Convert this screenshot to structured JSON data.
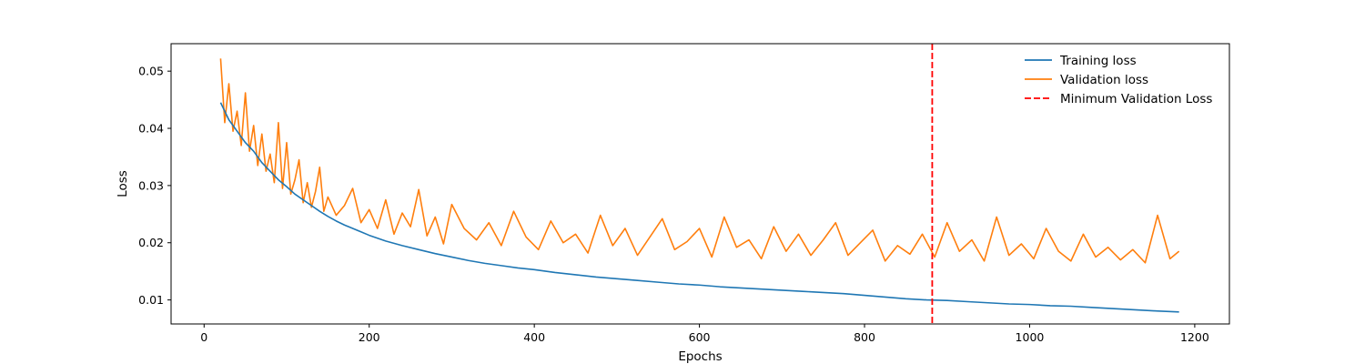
{
  "chart_data": {
    "type": "line",
    "title": "",
    "xlabel": "Epochs",
    "ylabel": "Loss",
    "xlim": [
      -40,
      1242
    ],
    "ylim": [
      0.0058,
      0.0548
    ],
    "xticks": [
      0,
      200,
      400,
      600,
      800,
      1000,
      1200
    ],
    "yticks": [
      0.01,
      0.02,
      0.03,
      0.04,
      0.05
    ],
    "grid": false,
    "legend_position": "top-right",
    "series": [
      {
        "name": "Training loss",
        "color": "#1f77b4",
        "style": "solid",
        "x": [
          20,
          30,
          40,
          50,
          60,
          70,
          80,
          90,
          100,
          110,
          120,
          130,
          140,
          150,
          160,
          170,
          180,
          190,
          200,
          220,
          240,
          260,
          280,
          300,
          320,
          340,
          360,
          380,
          400,
          425,
          450,
          475,
          500,
          525,
          550,
          575,
          600,
          625,
          650,
          675,
          700,
          725,
          750,
          775,
          800,
          825,
          850,
          875,
          900,
          925,
          950,
          975,
          1000,
          1025,
          1050,
          1075,
          1100,
          1125,
          1150,
          1181
        ],
        "y": [
          0.0445,
          0.0415,
          0.0395,
          0.0375,
          0.036,
          0.034,
          0.0325,
          0.031,
          0.0298,
          0.0285,
          0.0275,
          0.0265,
          0.0255,
          0.0246,
          0.0238,
          0.0231,
          0.0225,
          0.0219,
          0.0213,
          0.0203,
          0.0195,
          0.0188,
          0.0181,
          0.0175,
          0.0169,
          0.0164,
          0.016,
          0.0156,
          0.0153,
          0.0148,
          0.0144,
          0.014,
          0.0137,
          0.0134,
          0.0131,
          0.0128,
          0.0126,
          0.0123,
          0.0121,
          0.0119,
          0.0117,
          0.0115,
          0.0113,
          0.0111,
          0.0108,
          0.0105,
          0.0102,
          0.01,
          0.0099,
          0.0097,
          0.0095,
          0.0093,
          0.0092,
          0.009,
          0.0089,
          0.0087,
          0.0085,
          0.0083,
          0.0081,
          0.0079
        ]
      },
      {
        "name": "Validation loss",
        "color": "#ff7f0e",
        "style": "solid",
        "x": [
          20,
          25,
          30,
          35,
          40,
          45,
          50,
          55,
          60,
          65,
          70,
          75,
          80,
          85,
          90,
          95,
          100,
          105,
          110,
          115,
          120,
          125,
          130,
          135,
          140,
          145,
          150,
          160,
          170,
          180,
          190,
          200,
          210,
          220,
          230,
          240,
          250,
          260,
          270,
          280,
          290,
          300,
          315,
          330,
          345,
          360,
          375,
          390,
          405,
          420,
          435,
          450,
          465,
          480,
          495,
          510,
          525,
          540,
          555,
          570,
          585,
          600,
          615,
          630,
          645,
          660,
          675,
          690,
          705,
          720,
          735,
          750,
          765,
          780,
          795,
          810,
          825,
          840,
          855,
          870,
          885,
          900,
          915,
          930,
          945,
          960,
          975,
          990,
          1005,
          1020,
          1035,
          1050,
          1065,
          1080,
          1095,
          1110,
          1125,
          1140,
          1155,
          1170,
          1181
        ],
        "y": [
          0.0522,
          0.041,
          0.0478,
          0.0395,
          0.043,
          0.037,
          0.0462,
          0.036,
          0.0405,
          0.0335,
          0.039,
          0.0325,
          0.0355,
          0.0305,
          0.041,
          0.0295,
          0.0375,
          0.0285,
          0.031,
          0.0345,
          0.027,
          0.0305,
          0.0262,
          0.029,
          0.0332,
          0.0255,
          0.028,
          0.0248,
          0.0265,
          0.0295,
          0.0235,
          0.0258,
          0.0225,
          0.0275,
          0.0215,
          0.0252,
          0.0228,
          0.0293,
          0.0212,
          0.0245,
          0.0198,
          0.0267,
          0.0225,
          0.0205,
          0.0235,
          0.0195,
          0.0255,
          0.021,
          0.0188,
          0.0238,
          0.02,
          0.0215,
          0.0182,
          0.0248,
          0.0195,
          0.0225,
          0.0178,
          0.021,
          0.0242,
          0.0188,
          0.0202,
          0.0225,
          0.0175,
          0.0245,
          0.0192,
          0.0205,
          0.0172,
          0.0228,
          0.0185,
          0.0215,
          0.0178,
          0.0205,
          0.0235,
          0.0178,
          0.02,
          0.0222,
          0.0168,
          0.0195,
          0.018,
          0.0215,
          0.0175,
          0.0235,
          0.0185,
          0.0205,
          0.0168,
          0.0245,
          0.0178,
          0.0198,
          0.0172,
          0.0225,
          0.0185,
          0.0168,
          0.0215,
          0.0175,
          0.0192,
          0.017,
          0.0188,
          0.0165,
          0.0248,
          0.0172,
          0.0185
        ]
      },
      {
        "name": "Minimum Validation Loss",
        "color": "#ff0000",
        "style": "dashed",
        "vline_x": 882
      }
    ]
  }
}
